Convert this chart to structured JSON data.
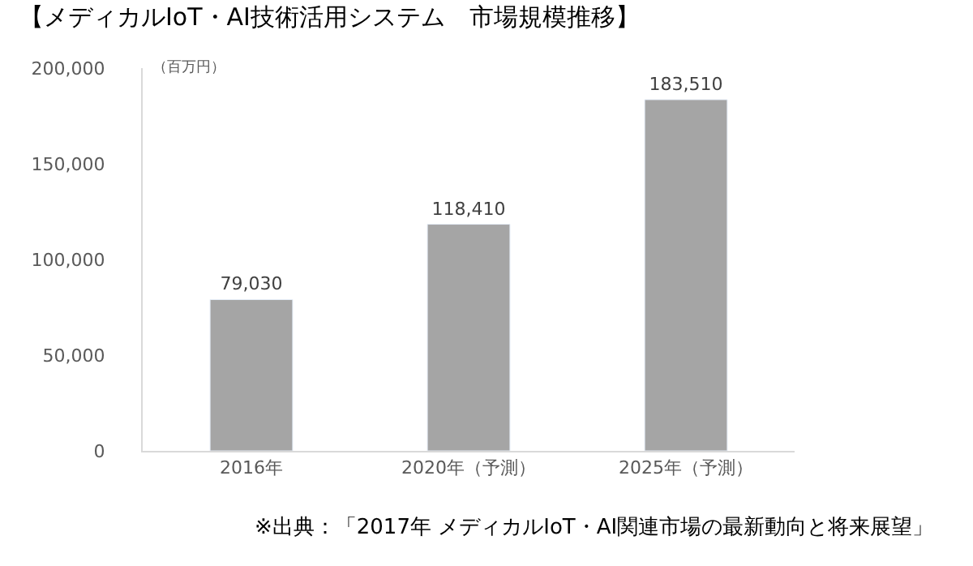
{
  "chart_data": {
    "type": "bar",
    "title": "【メディカルIoT・AI技術活用システム　市場規模推移】",
    "ylabel": "（百万円）",
    "categories": [
      "2016年",
      "2020年（予測）",
      "2025年（予測）"
    ],
    "values": [
      79030,
      118410,
      183510
    ],
    "color": "#a5a5a5",
    "value_labels": [
      "79,030",
      "118,410",
      "183,510"
    ],
    "ylim": [
      0,
      200000
    ],
    "yticks": [
      {
        "value": 0,
        "label": "0"
      },
      {
        "value": 50000,
        "label": "50,000"
      },
      {
        "value": 100000,
        "label": "100,000"
      },
      {
        "value": 150000,
        "label": "150,000"
      },
      {
        "value": 200000,
        "label": "200,000"
      }
    ],
    "legend": false,
    "annotations": [
      "※出典：「2017年 メディカルIoT・AI関連市場の最新動向と将来展望」"
    ]
  }
}
